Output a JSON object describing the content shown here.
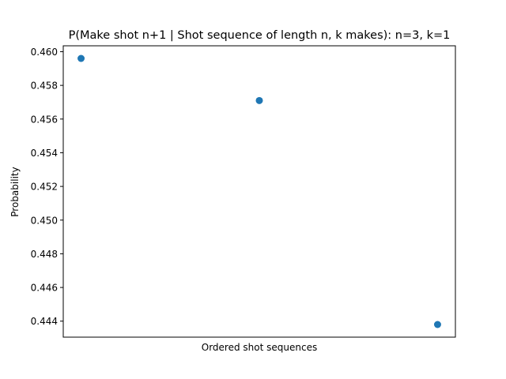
{
  "chart_data": {
    "type": "scatter",
    "title": "P(Make shot n+1 | Shot sequence of length n, k makes): n=3, k=1",
    "xlabel": "Ordered shot sequences",
    "ylabel": "Probability",
    "x": [
      0,
      1,
      2
    ],
    "y": [
      0.4596,
      0.4571,
      0.4438
    ],
    "xlim": [
      -0.1,
      2.1
    ],
    "ylim": [
      0.44305,
      0.46035
    ],
    "yticks": [
      0.444,
      0.446,
      0.448,
      0.45,
      0.452,
      0.454,
      0.456,
      0.458,
      0.46
    ],
    "ytick_labels": [
      "0.444",
      "0.446",
      "0.448",
      "0.450",
      "0.452",
      "0.454",
      "0.456",
      "0.458",
      "0.460"
    ],
    "xticks": [],
    "grid": false,
    "marker_color": "#1f77b4"
  }
}
